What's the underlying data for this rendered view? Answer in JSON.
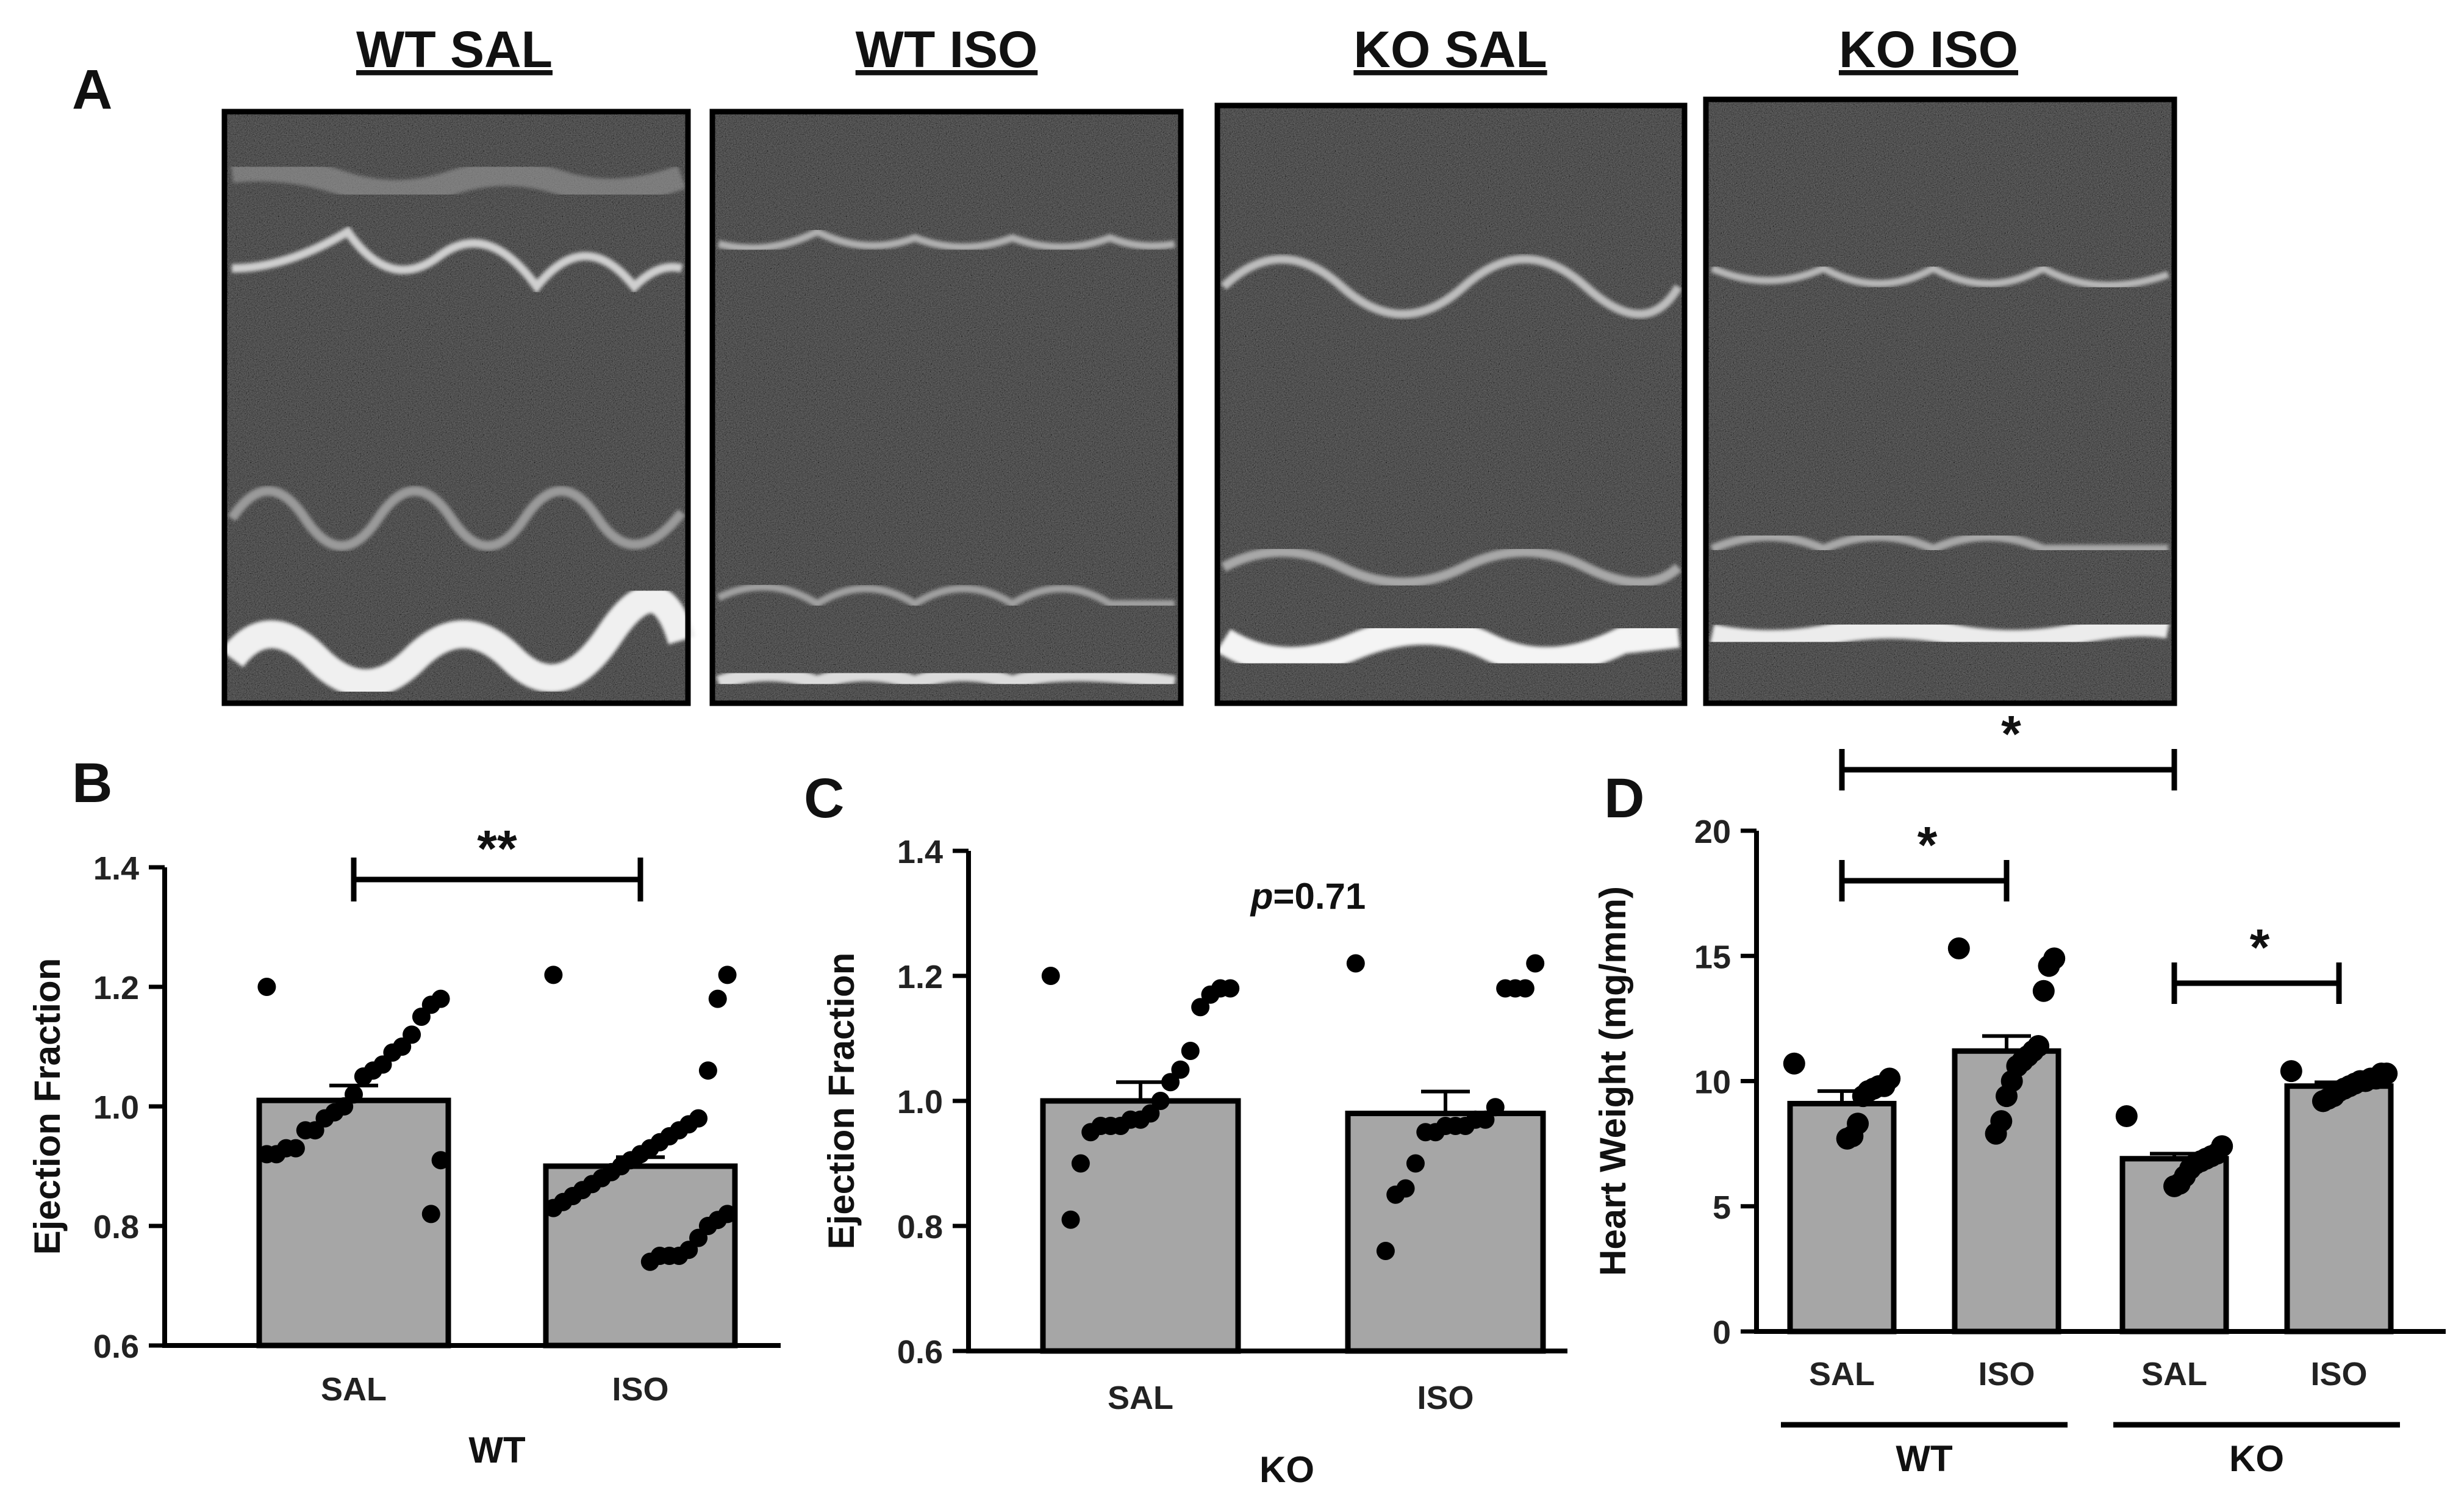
{
  "figure": {
    "panels": {
      "a": "A",
      "b": "B",
      "c": "C",
      "d": "D"
    },
    "echo_titles": [
      "WT SAL",
      "WT ISO",
      "KO SAL",
      "KO ISO"
    ]
  },
  "colors": {
    "bar_fill": "#a6a6a6",
    "ink": "#000000",
    "echo_bg": "#141414"
  },
  "chart_data": [
    {
      "type": "bar",
      "panel": "B",
      "title": "",
      "ylabel": "Ejection Fraction",
      "xlabel": "WT",
      "ylim": [
        0.6,
        1.4
      ],
      "yticks": [
        "0.6",
        "0.8",
        "1.0",
        "1.2",
        "1.4"
      ],
      "yticks_num": [
        0.6,
        0.8,
        1.0,
        1.2,
        1.4
      ],
      "categories": [
        "SAL",
        "ISO"
      ],
      "values": [
        1.01,
        0.9
      ],
      "sem": [
        0.025,
        0.015
      ],
      "points": [
        [
          1.2,
          1.18,
          1.17,
          1.15,
          1.12,
          1.1,
          1.09,
          1.07,
          1.06,
          1.05,
          1.02,
          1.0,
          0.99,
          0.98,
          0.96,
          0.96,
          0.93,
          0.93,
          0.92,
          0.92,
          0.91,
          0.82
        ],
        [
          1.22,
          1.22,
          1.18,
          1.06,
          0.98,
          0.97,
          0.96,
          0.95,
          0.94,
          0.93,
          0.92,
          0.91,
          0.9,
          0.89,
          0.88,
          0.87,
          0.86,
          0.85,
          0.84,
          0.83,
          0.82,
          0.81,
          0.8,
          0.78,
          0.76,
          0.75,
          0.75,
          0.75,
          0.74
        ]
      ],
      "significance": {
        "label": "**",
        "between": [
          "SAL",
          "ISO"
        ]
      }
    },
    {
      "type": "bar",
      "panel": "C",
      "title": "",
      "ylabel": "Ejection Fraction",
      "xlabel": "KO",
      "ylim": [
        0.6,
        1.4
      ],
      "yticks": [
        "0.6",
        "0.8",
        "1.0",
        "1.2",
        "1.4"
      ],
      "yticks_num": [
        0.6,
        0.8,
        1.0,
        1.2,
        1.4
      ],
      "categories": [
        "SAL",
        "ISO"
      ],
      "values": [
        1.0,
        0.98
      ],
      "sem": [
        0.03,
        0.035
      ],
      "points": [
        [
          1.2,
          1.18,
          1.18,
          1.17,
          1.15,
          1.08,
          1.05,
          1.03,
          1.0,
          0.98,
          0.97,
          0.97,
          0.96,
          0.96,
          0.96,
          0.95,
          0.9,
          0.81
        ],
        [
          1.22,
          1.22,
          1.18,
          1.18,
          1.18,
          0.99,
          0.97,
          0.97,
          0.96,
          0.96,
          0.96,
          0.95,
          0.95,
          0.9,
          0.86,
          0.85,
          0.76
        ]
      ],
      "annotation": {
        "italic": "p",
        "rest": "=0.71"
      }
    },
    {
      "type": "bar",
      "panel": "D",
      "title": "",
      "ylabel": "Heart Weight (mg/mm)",
      "xlabel": "",
      "ylim": [
        0,
        20
      ],
      "yticks": [
        "0",
        "5",
        "10",
        "15",
        "20"
      ],
      "yticks_num": [
        0,
        5,
        10,
        15,
        20
      ],
      "categories": [
        "SAL",
        "ISO",
        "SAL",
        "ISO"
      ],
      "groups": [
        {
          "name": "WT",
          "span": [
            0,
            1
          ]
        },
        {
          "name": "KO",
          "span": [
            2,
            3
          ]
        }
      ],
      "values": [
        9.1,
        11.2,
        6.9,
        9.8
      ],
      "sem": [
        0.5,
        0.6,
        0.2,
        0.15
      ],
      "points": [
        [
          10.7,
          10.1,
          9.8,
          9.8,
          9.7,
          9.6,
          9.4,
          8.3,
          7.8,
          7.7
        ],
        [
          15.3,
          14.9,
          14.6,
          13.6,
          11.4,
          11.2,
          11.0,
          10.8,
          10.6,
          10.0,
          9.4,
          8.4,
          7.9
        ],
        [
          8.6,
          7.4,
          7.1,
          7.0,
          6.9,
          6.8,
          6.7,
          6.5,
          6.2,
          5.9,
          5.8
        ],
        [
          10.4,
          10.3,
          10.3,
          10.1,
          10.1,
          10.0,
          10.0,
          9.9,
          9.8,
          9.7,
          9.6,
          9.4,
          9.3,
          9.2
        ]
      ],
      "significance": [
        {
          "label": "*",
          "between": [
            0,
            1
          ]
        },
        {
          "label": "*",
          "between": [
            2,
            3
          ]
        },
        {
          "label": "*",
          "between": [
            0,
            2
          ]
        }
      ]
    }
  ]
}
